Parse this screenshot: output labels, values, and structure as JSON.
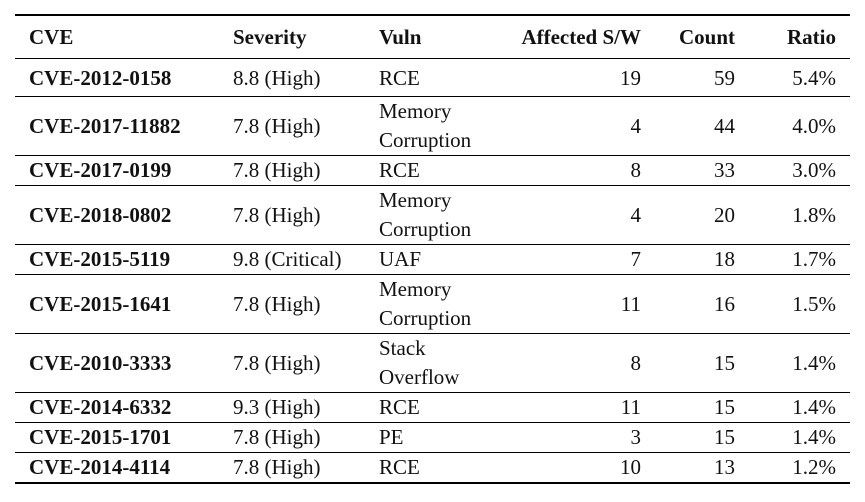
{
  "table": {
    "header": [
      "CVE",
      "Severity",
      "Vuln",
      "Affected S/W",
      "Count",
      "Ratio"
    ],
    "rows": [
      [
        "CVE-2012-0158",
        "8.8 (High)",
        "RCE",
        19,
        59,
        "5.4%"
      ],
      [
        "CVE-2017-11882",
        "7.8 (High)",
        "Memory Corruption",
        4,
        44,
        "4.0%"
      ],
      [
        "CVE-2017-0199",
        "7.8 (High)",
        "RCE",
        8,
        33,
        "3.0%"
      ],
      [
        "CVE-2018-0802",
        "7.8 (High)",
        "Memory Corruption",
        4,
        20,
        "1.8%"
      ],
      [
        "CVE-2015-5119",
        "9.8 (Critical)",
        "UAF",
        7,
        18,
        "1.7%"
      ],
      [
        "CVE-2015-1641",
        "7.8 (High)",
        "Memory Corruption",
        11,
        16,
        "1.5%"
      ],
      [
        "CVE-2010-3333",
        "7.8 (High)",
        "Stack Overflow",
        8,
        15,
        "1.4%"
      ],
      [
        "CVE-2014-6332",
        "9.3 (High)",
        "RCE",
        11,
        15,
        "1.4%"
      ],
      [
        "CVE-2015-1701",
        "7.8 (High)",
        "PE",
        3,
        15,
        "1.4%"
      ],
      [
        "CVE-2014-4114",
        "7.8 (High)",
        "RCE",
        10,
        13,
        "1.2%"
      ]
    ]
  }
}
